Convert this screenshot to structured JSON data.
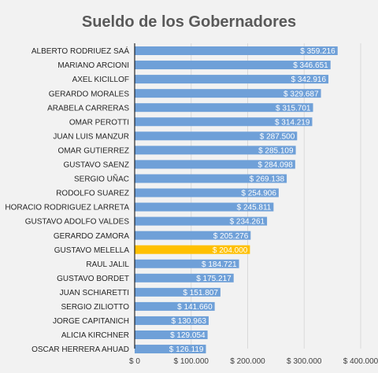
{
  "chart_data": {
    "type": "bar",
    "orientation": "horizontal",
    "title": "Sueldo de los Gobernadores",
    "categories": [
      "ALBERTO RODRIUEZ SAÁ",
      "MARIANO ARCIONI",
      "AXEL KICILLOF",
      "GERARDO MORALES",
      "ARABELA CARRERAS",
      "OMAR PEROTTI",
      "JUAN LUIS MANZUR",
      "OMAR GUTIERREZ",
      "GUSTAVO SAENZ",
      "SERGIO UÑAC",
      "RODOLFO SUAREZ",
      "HORACIO RODRIGUEZ LARRETA",
      "GUSTAVO ADOLFO VALDES",
      "GERARDO ZAMORA",
      "GUSTAVO MELELLA",
      "RAUL JALIL",
      "GUSTAVO BORDET",
      "JUAN SCHIARETTI",
      "SERGIO ZILIOTTO",
      "JORGE CAPITANICH",
      "ALICIA KIRCHNER",
      "OSCAR HERRERA AHUAD"
    ],
    "values": [
      359216,
      346651,
      342916,
      329687,
      315701,
      314219,
      287500,
      285109,
      284098,
      269138,
      254906,
      245811,
      234261,
      205276,
      204000,
      184721,
      175217,
      151807,
      141660,
      130963,
      129054,
      126119
    ],
    "value_labels": [
      "$ 359.216",
      "$ 346.651",
      "$ 342.916",
      "$ 329.687",
      "$ 315.701",
      "$ 314.219",
      "$ 287.500",
      "$ 285.109",
      "$ 284.098",
      "$ 269.138",
      "$ 254.906",
      "$ 245.811",
      "$ 234.261",
      "$ 205.276",
      "$ 204.000",
      "$ 184.721",
      "$ 175.217",
      "$ 151.807",
      "$ 141.660",
      "$ 130.963",
      "$ 129.054",
      "$ 126.119"
    ],
    "highlight_index": 14,
    "xlim": [
      0,
      400000
    ],
    "xticks": [
      0,
      100000,
      200000,
      300000,
      400000
    ],
    "xtick_labels": [
      "$ 0",
      "$ 100.000",
      "$ 200.000",
      "$ 300.000",
      "$ 400.000"
    ],
    "grid": true,
    "colors": {
      "bar": "#6fa0d8",
      "highlight": "#ffc000",
      "background": "#f2f2f2",
      "grid": "#d9d9d9",
      "title": "#595959",
      "axis_line": "#000000"
    }
  }
}
